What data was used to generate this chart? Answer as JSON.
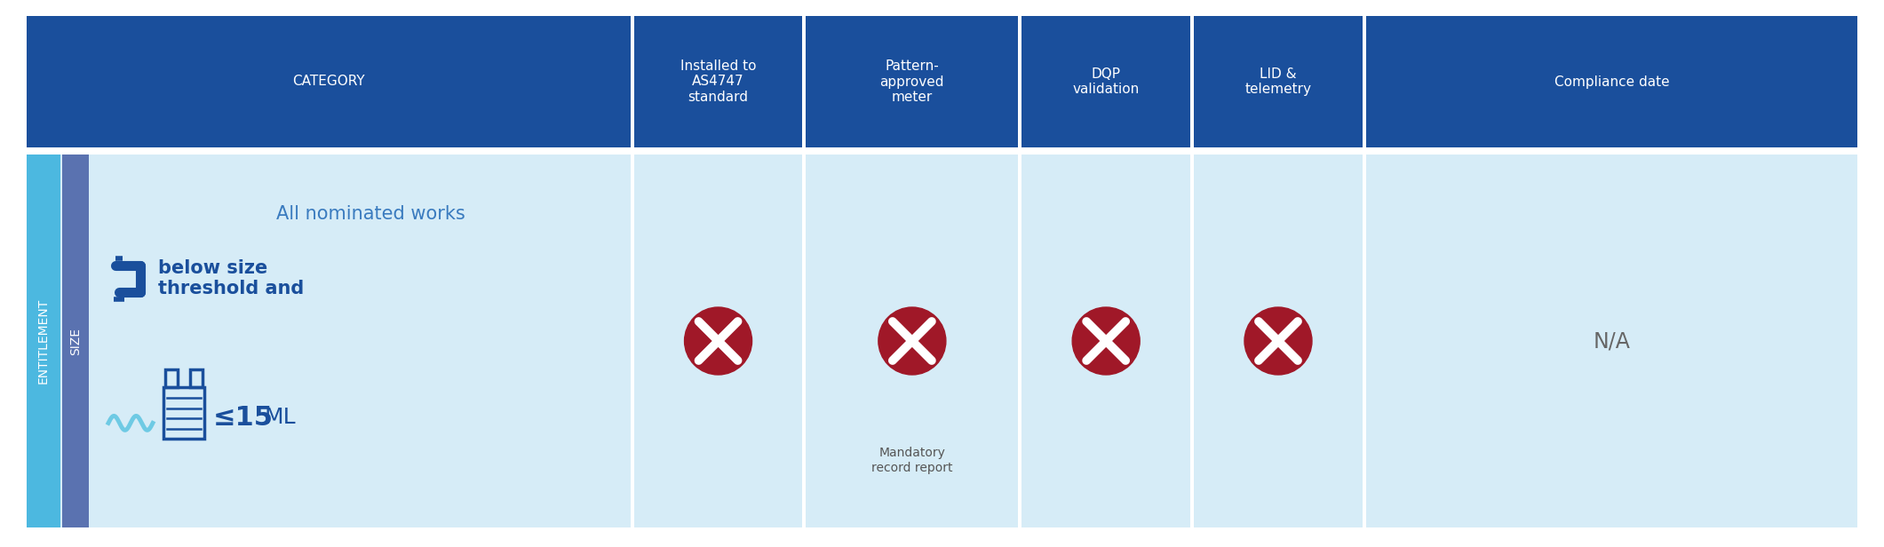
{
  "header_bg": "#1a4f9c",
  "header_text_color": "#ffffff",
  "cell_bg_light": "#d6ecf7",
  "entitlement_bg": "#4cb8e0",
  "size_bg": "#5a72b0",
  "sidebar_text_color": "#ffffff",
  "body_text_dark": "#1a4f9c",
  "body_text_medium": "#3a7bbf",
  "cross_color": "#a01828",
  "na_text_color": "#666666",
  "wave_color": "#6ecae4",
  "headers": [
    "CATEGORY",
    "Installed to\nAS4747\nstandard",
    "Pattern-\napproved\nmeter",
    "DQP\nvalidation",
    "LID &\ntelemetry",
    "Compliance date"
  ],
  "entitlement_label": "ENTITLEMENT",
  "size_label": "SIZE",
  "main_text_line1": "All nominated works",
  "main_text_bold": "below size\nthreshold and",
  "main_text_small": "≤15 ML",
  "sub_note": "Mandatory\nrecord report",
  "na_label": "N/A",
  "white_bg": "#ffffff"
}
